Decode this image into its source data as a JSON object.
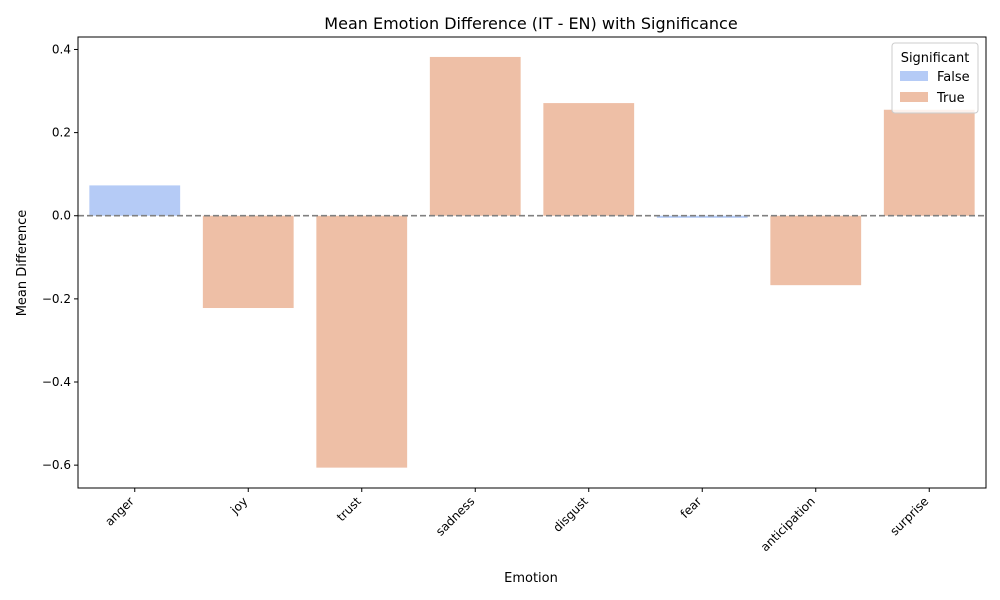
{
  "chart_data": {
    "type": "bar",
    "title": "Mean Emotion Difference (IT - EN) with Significance",
    "xlabel": "Emotion",
    "ylabel": "Mean Difference",
    "categories": [
      "anger",
      "joy",
      "trust",
      "sadness",
      "disgust",
      "fear",
      "anticipation",
      "surprise"
    ],
    "values": [
      0.073,
      -0.222,
      -0.606,
      0.382,
      0.271,
      -0.005,
      -0.167,
      0.255
    ],
    "significant": [
      false,
      true,
      true,
      true,
      true,
      false,
      true,
      true
    ],
    "ylim": [
      -0.655,
      0.43
    ],
    "yticks": [
      -0.6,
      -0.4,
      -0.2,
      0.0,
      0.2,
      0.4
    ],
    "ytick_labels": [
      "−0.6",
      "−0.4",
      "−0.2",
      "0.0",
      "0.2",
      "0.4"
    ],
    "reference_line": 0,
    "grid": false,
    "legend": {
      "title": "Significant",
      "placement": "top-right",
      "entries": [
        {
          "label": "False",
          "color": "#b5cbf6"
        },
        {
          "label": "True",
          "color": "#eebfa6"
        }
      ]
    },
    "colors": {
      "false": "#b5cbf6",
      "true": "#eebfa6",
      "reference_line": "#808080"
    }
  }
}
